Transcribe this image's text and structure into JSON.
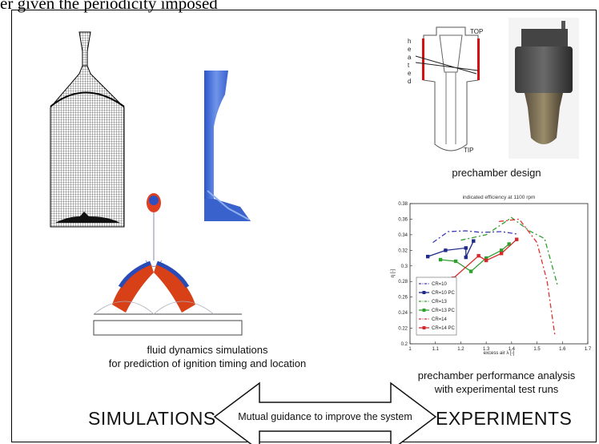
{
  "top_caption": "er given the periodicity imposed",
  "sim_caption_line1": "fluid dynamics simulations",
  "sim_caption_line2": "for prediction of ignition timing and location",
  "prechamber_label": "prechamber design",
  "perf_caption_line1": "prechamber performance analysis",
  "perf_caption_line2": "with experimental test runs",
  "left_title": "SIMULATIONS",
  "right_title": "EXPERIMENTS",
  "arrow_label": "Mutual guidance to improve the system",
  "diagram_labels": {
    "top": "TOP",
    "tip": "TIP",
    "heated": [
      "h",
      "e",
      "a",
      "t",
      "e",
      "d"
    ]
  },
  "chart_data": {
    "type": "line",
    "title": "indicated efficiency at 1100 rpm",
    "xlabel": "excess air  λ [-]",
    "ylabel": "η [-]",
    "xlim": [
      1,
      1.7
    ],
    "ylim": [
      0.2,
      0.38
    ],
    "xticks": [
      "1",
      "1.1",
      "1.2",
      "1.3",
      "1.4",
      "1.5",
      "1.6",
      "1.7"
    ],
    "yticks": [
      "0.2",
      "0.22",
      "0.24",
      "0.26",
      "0.28",
      "0.3",
      "0.32",
      "0.34",
      "0.36",
      "0.38"
    ],
    "series": [
      {
        "name": "CR=10",
        "color": "#3a3ab8",
        "dash": "6,3,2,3",
        "marker": "none",
        "x": [
          1.09,
          1.15,
          1.22,
          1.28,
          1.36,
          1.42
        ],
        "y": [
          0.33,
          0.344,
          0.345,
          0.343,
          0.344,
          0.341
        ]
      },
      {
        "name": "CR=10 PC",
        "color": "#1f2a8a",
        "dash": "",
        "marker": "square",
        "x": [
          1.07,
          1.14,
          1.22,
          1.22,
          1.25
        ],
        "y": [
          0.312,
          0.32,
          0.323,
          0.311,
          0.332
        ]
      },
      {
        "name": "CR=13",
        "color": "#2ea02e",
        "dash": "6,3,2,3",
        "marker": "none",
        "x": [
          1.2,
          1.3,
          1.4,
          1.47,
          1.53,
          1.58
        ],
        "y": [
          0.333,
          0.34,
          0.362,
          0.345,
          0.335,
          0.276
        ]
      },
      {
        "name": "CR=13 PC",
        "color": "#2ea02e",
        "dash": "",
        "marker": "square",
        "x": [
          1.12,
          1.18,
          1.24,
          1.3,
          1.36,
          1.39
        ],
        "y": [
          0.308,
          0.306,
          0.293,
          0.31,
          0.32,
          0.328
        ]
      },
      {
        "name": "CR=14",
        "color": "#e03030",
        "dash": "6,3,2,3",
        "marker": "none",
        "x": [
          1.35,
          1.43,
          1.5,
          1.54,
          1.57
        ],
        "y": [
          0.357,
          0.36,
          0.33,
          0.28,
          0.212
        ]
      },
      {
        "name": "CR=14 PC",
        "color": "#d42a2a",
        "dash": "",
        "marker": "square",
        "x": [
          1.17,
          1.27,
          1.3,
          1.36,
          1.42
        ],
        "y": [
          0.284,
          0.313,
          0.307,
          0.316,
          0.334
        ]
      }
    ],
    "legend_position": "bottom-left"
  }
}
